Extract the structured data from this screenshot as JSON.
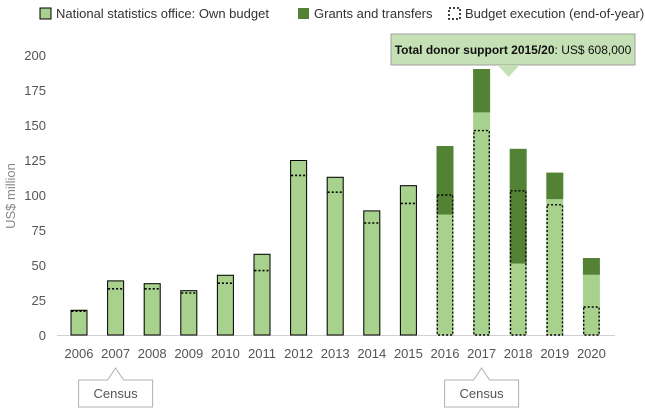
{
  "chart_data": {
    "type": "bar",
    "ylabel": "US$ million",
    "ylim": [
      0,
      200
    ],
    "yticks": [
      0,
      25,
      50,
      75,
      100,
      125,
      150,
      175,
      200
    ],
    "categories": [
      "2006",
      "2007",
      "2008",
      "2009",
      "2010",
      "2011",
      "2012",
      "2013",
      "2014",
      "2015",
      "2016",
      "2017",
      "2018",
      "2019",
      "2020"
    ],
    "series": [
      {
        "name": "National statistics office: Own budget",
        "color": "#a9d18e",
        "values": [
          18,
          39,
          37,
          32,
          43,
          58,
          125,
          113,
          89,
          107,
          86,
          159,
          51,
          97,
          43
        ]
      },
      {
        "name": "Grants and transfers",
        "color": "#548235",
        "values": [
          0,
          0,
          0,
          0,
          0,
          0,
          0,
          0,
          0,
          0,
          49,
          31,
          82,
          19,
          12
        ]
      },
      {
        "name": "Budget execution (end-of-year)",
        "color": "#000000",
        "values": [
          17,
          33,
          33,
          30,
          37,
          46,
          114,
          102,
          80,
          94,
          100,
          146,
          103,
          93,
          20
        ]
      }
    ],
    "annotations": {
      "callout": {
        "bold": "Total donor support 2015/20",
        "rest": ": US$ 608,000",
        "color": "#c5e0b4",
        "category": "2017"
      },
      "census": [
        {
          "label": "Census",
          "category": "2007"
        },
        {
          "label": "Census",
          "category": "2017"
        }
      ]
    },
    "legend_position": "top"
  }
}
